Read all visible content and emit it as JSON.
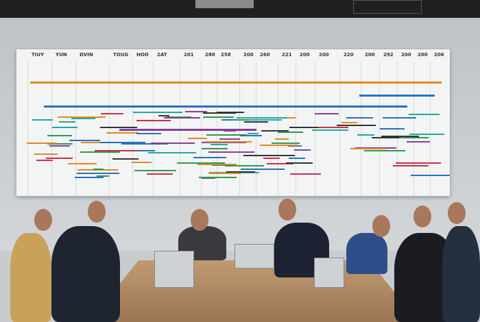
{
  "scene": "meeting room with large timeline chart on wall",
  "board": {
    "header_labels": [
      "TIUY",
      "YUN",
      "DVIN",
      "TOUG",
      "HOO",
      "2AT",
      "201",
      "280",
      "258",
      "200",
      "260",
      "221",
      "200",
      "200",
      "220",
      "200",
      "292",
      "200",
      "200",
      "206"
    ]
  },
  "colors": {
    "ceiling": "#1e2022",
    "wall": "#c9ccce",
    "board": "#f3f4f4",
    "table": "#b08a64",
    "accent_orange": "#e08a1e",
    "accent_blue": "#2a6fc0",
    "accent_teal": "#1fa9a6",
    "accent_purple": "#8a3d9a",
    "accent_red": "#c8304a"
  }
}
